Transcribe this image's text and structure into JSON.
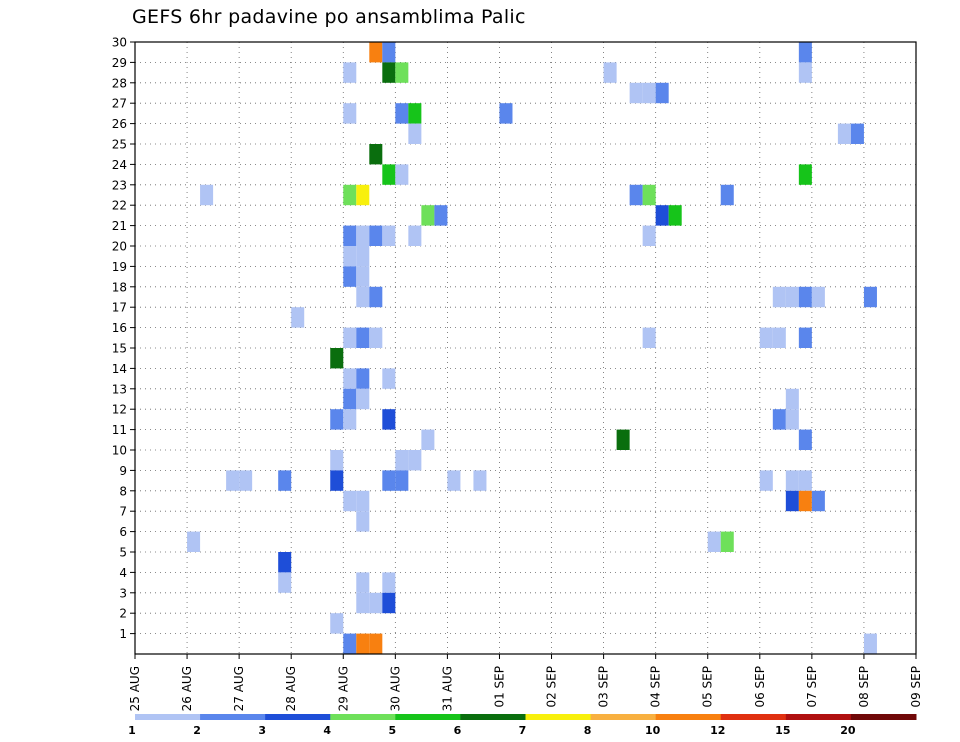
{
  "chart_data": {
    "type": "heatmap",
    "title": "GEFS 6hr padavine po ansamblima Palic",
    "xlabel": "",
    "ylabel": "",
    "x_tick_labels": [
      "25 AUG",
      "26 AUG",
      "27 AUG",
      "28 AUG",
      "29 AUG",
      "30 AUG",
      "31 AUG",
      "01 SEP",
      "02 SEP",
      "03 SEP",
      "04 SEP",
      "05 SEP",
      "06 SEP",
      "07 SEP",
      "08 SEP",
      "09 SEP"
    ],
    "y_tick_labels": [
      "1",
      "2",
      "3",
      "4",
      "5",
      "6",
      "7",
      "8",
      "9",
      "10",
      "11",
      "12",
      "13",
      "14",
      "15",
      "16",
      "17",
      "18",
      "19",
      "20",
      "21",
      "22",
      "23",
      "24",
      "25",
      "26",
      "27",
      "28",
      "29",
      "30"
    ],
    "ylim": [
      0,
      30
    ],
    "grid": true,
    "colorbar": {
      "levels": [
        "1",
        "2",
        "3",
        "4",
        "5",
        "6",
        "7",
        "8",
        "10",
        "12",
        "15",
        "20"
      ],
      "colors": [
        "#b0c4f4",
        "#5a86ec",
        "#1e4ed8",
        "#6ee05a",
        "#16c41a",
        "#0a6e0e",
        "#f8f00c",
        "#f8b040",
        "#f88010",
        "#e03010",
        "#b01010",
        "#700808"
      ]
    },
    "x_unit": "days after 25 AUG (step 0.25 = 6 h)",
    "cells": [
      {
        "member": 30,
        "t": 4.5,
        "value": 10
      },
      {
        "member": 30,
        "t": 4.75,
        "value": 2
      },
      {
        "member": 30,
        "t": 12.75,
        "value": 2
      },
      {
        "member": 29,
        "t": 4.0,
        "value": 1
      },
      {
        "member": 29,
        "t": 4.75,
        "value": 6
      },
      {
        "member": 29,
        "t": 5.0,
        "value": 4
      },
      {
        "member": 29,
        "t": 9.0,
        "value": 1
      },
      {
        "member": 29,
        "t": 12.75,
        "value": 1
      },
      {
        "member": 28,
        "t": 9.5,
        "value": 1
      },
      {
        "member": 28,
        "t": 9.75,
        "value": 1
      },
      {
        "member": 28,
        "t": 10.0,
        "value": 2
      },
      {
        "member": 27,
        "t": 4.0,
        "value": 1
      },
      {
        "member": 27,
        "t": 5.0,
        "value": 2
      },
      {
        "member": 27,
        "t": 5.25,
        "value": 5
      },
      {
        "member": 27,
        "t": 7.0,
        "value": 2
      },
      {
        "member": 26,
        "t": 5.25,
        "value": 1
      },
      {
        "member": 26,
        "t": 13.5,
        "value": 1
      },
      {
        "member": 26,
        "t": 13.75,
        "value": 2
      },
      {
        "member": 25,
        "t": 4.5,
        "value": 6
      },
      {
        "member": 24,
        "t": 4.75,
        "value": 5
      },
      {
        "member": 24,
        "t": 5.0,
        "value": 1
      },
      {
        "member": 24,
        "t": 12.75,
        "value": 5
      },
      {
        "member": 23,
        "t": 1.25,
        "value": 1
      },
      {
        "member": 23,
        "t": 4.0,
        "value": 4
      },
      {
        "member": 23,
        "t": 4.25,
        "value": 7
      },
      {
        "member": 23,
        "t": 9.5,
        "value": 2
      },
      {
        "member": 23,
        "t": 9.75,
        "value": 4
      },
      {
        "member": 23,
        "t": 11.25,
        "value": 2
      },
      {
        "member": 22,
        "t": 5.5,
        "value": 4
      },
      {
        "member": 22,
        "t": 5.75,
        "value": 2
      },
      {
        "member": 22,
        "t": 10.0,
        "value": 3
      },
      {
        "member": 22,
        "t": 10.25,
        "value": 5
      },
      {
        "member": 21,
        "t": 4.0,
        "value": 2
      },
      {
        "member": 21,
        "t": 4.25,
        "value": 1
      },
      {
        "member": 21,
        "t": 4.5,
        "value": 2
      },
      {
        "member": 21,
        "t": 4.75,
        "value": 1
      },
      {
        "member": 21,
        "t": 5.25,
        "value": 1
      },
      {
        "member": 21,
        "t": 9.75,
        "value": 1
      },
      {
        "member": 20,
        "t": 4.0,
        "value": 1
      },
      {
        "member": 20,
        "t": 4.25,
        "value": 1
      },
      {
        "member": 19,
        "t": 4.0,
        "value": 2
      },
      {
        "member": 19,
        "t": 4.25,
        "value": 1
      },
      {
        "member": 18,
        "t": 4.25,
        "value": 1
      },
      {
        "member": 18,
        "t": 4.5,
        "value": 2
      },
      {
        "member": 18,
        "t": 12.25,
        "value": 1
      },
      {
        "member": 18,
        "t": 12.5,
        "value": 1
      },
      {
        "member": 18,
        "t": 12.75,
        "value": 2
      },
      {
        "member": 18,
        "t": 13.0,
        "value": 1
      },
      {
        "member": 18,
        "t": 14.0,
        "value": 2
      },
      {
        "member": 17,
        "t": 3.0,
        "value": 1
      },
      {
        "member": 16,
        "t": 4.0,
        "value": 1
      },
      {
        "member": 16,
        "t": 4.25,
        "value": 2
      },
      {
        "member": 16,
        "t": 4.5,
        "value": 1
      },
      {
        "member": 16,
        "t": 9.75,
        "value": 1
      },
      {
        "member": 16,
        "t": 12.0,
        "value": 1
      },
      {
        "member": 16,
        "t": 12.25,
        "value": 1
      },
      {
        "member": 16,
        "t": 12.75,
        "value": 2
      },
      {
        "member": 15,
        "t": 3.75,
        "value": 6
      },
      {
        "member": 14,
        "t": 4.0,
        "value": 1
      },
      {
        "member": 14,
        "t": 4.25,
        "value": 2
      },
      {
        "member": 14,
        "t": 4.75,
        "value": 1
      },
      {
        "member": 13,
        "t": 4.0,
        "value": 2
      },
      {
        "member": 13,
        "t": 4.25,
        "value": 1
      },
      {
        "member": 13,
        "t": 12.5,
        "value": 1
      },
      {
        "member": 12,
        "t": 3.75,
        "value": 2
      },
      {
        "member": 12,
        "t": 4.0,
        "value": 1
      },
      {
        "member": 12,
        "t": 4.75,
        "value": 3
      },
      {
        "member": 12,
        "t": 12.25,
        "value": 2
      },
      {
        "member": 12,
        "t": 12.5,
        "value": 1
      },
      {
        "member": 11,
        "t": 5.5,
        "value": 1
      },
      {
        "member": 11,
        "t": 9.25,
        "value": 6
      },
      {
        "member": 11,
        "t": 12.75,
        "value": 2
      },
      {
        "member": 10,
        "t": 3.75,
        "value": 1
      },
      {
        "member": 10,
        "t": 5.0,
        "value": 1
      },
      {
        "member": 10,
        "t": 5.25,
        "value": 1
      },
      {
        "member": 9,
        "t": 1.75,
        "value": 1
      },
      {
        "member": 9,
        "t": 2.0,
        "value": 1
      },
      {
        "member": 9,
        "t": 2.75,
        "value": 2
      },
      {
        "member": 9,
        "t": 3.75,
        "value": 3
      },
      {
        "member": 9,
        "t": 4.75,
        "value": 2
      },
      {
        "member": 9,
        "t": 5.0,
        "value": 2
      },
      {
        "member": 9,
        "t": 6.0,
        "value": 1
      },
      {
        "member": 9,
        "t": 6.5,
        "value": 1
      },
      {
        "member": 9,
        "t": 12.0,
        "value": 1
      },
      {
        "member": 9,
        "t": 12.5,
        "value": 1
      },
      {
        "member": 9,
        "t": 12.75,
        "value": 1
      },
      {
        "member": 8,
        "t": 4.0,
        "value": 1
      },
      {
        "member": 8,
        "t": 4.25,
        "value": 1
      },
      {
        "member": 8,
        "t": 12.5,
        "value": 3
      },
      {
        "member": 8,
        "t": 12.75,
        "value": 10
      },
      {
        "member": 8,
        "t": 13.0,
        "value": 2
      },
      {
        "member": 7,
        "t": 4.25,
        "value": 1
      },
      {
        "member": 6,
        "t": 1.0,
        "value": 1
      },
      {
        "member": 6,
        "t": 11.0,
        "value": 1
      },
      {
        "member": 6,
        "t": 11.25,
        "value": 4
      },
      {
        "member": 5,
        "t": 2.75,
        "value": 3
      },
      {
        "member": 4,
        "t": 2.75,
        "value": 1
      },
      {
        "member": 4,
        "t": 4.25,
        "value": 1
      },
      {
        "member": 4,
        "t": 4.75,
        "value": 1
      },
      {
        "member": 3,
        "t": 4.25,
        "value": 1
      },
      {
        "member": 3,
        "t": 4.5,
        "value": 1
      },
      {
        "member": 3,
        "t": 4.75,
        "value": 3
      },
      {
        "member": 2,
        "t": 3.75,
        "value": 1
      },
      {
        "member": 1,
        "t": 4.0,
        "value": 2
      },
      {
        "member": 1,
        "t": 4.25,
        "value": 10
      },
      {
        "member": 1,
        "t": 4.5,
        "value": 10
      },
      {
        "member": 1,
        "t": 14.0,
        "value": 1
      }
    ]
  }
}
